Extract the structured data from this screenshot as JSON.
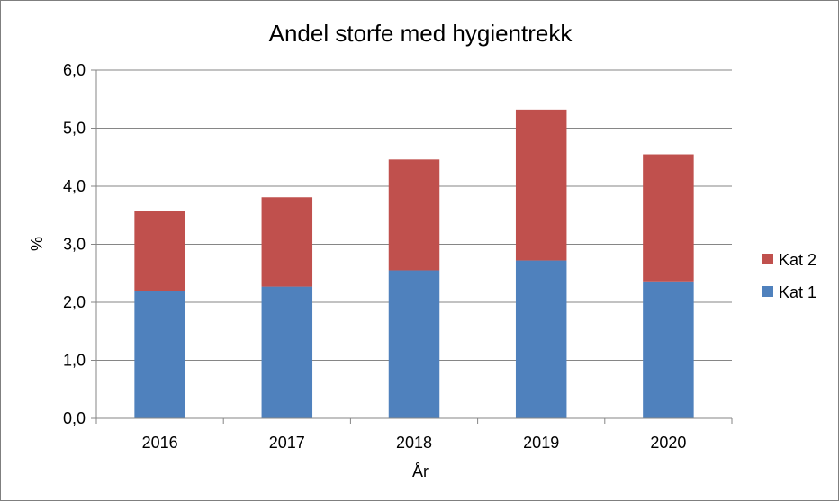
{
  "chart_data": {
    "type": "bar",
    "stacked": true,
    "title": "Andel storfe med hygientrekk",
    "xlabel": "År",
    "ylabel": "%",
    "categories": [
      "2016",
      "2017",
      "2018",
      "2019",
      "2020"
    ],
    "series": [
      {
        "name": "Kat 1",
        "color": "#4f81bd",
        "values": [
          2.2,
          2.27,
          2.55,
          2.72,
          2.36
        ]
      },
      {
        "name": "Kat 2",
        "color": "#c0504d",
        "values": [
          1.37,
          1.54,
          1.91,
          2.6,
          2.19
        ]
      }
    ],
    "ylim": [
      0,
      6
    ],
    "yticks": [
      "0,0",
      "1,0",
      "2,0",
      "3,0",
      "4,0",
      "5,0",
      "6,0"
    ],
    "grid": true,
    "legend_position": "right"
  }
}
